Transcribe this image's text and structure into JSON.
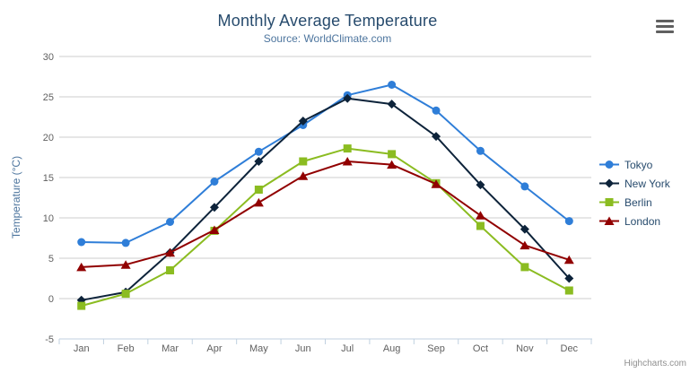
{
  "header": {
    "title": "Monthly Average Temperature",
    "subtitle": "Source: WorldClimate.com"
  },
  "credit": "Highcharts.com",
  "chart_data": {
    "type": "line",
    "title": "Monthly Average Temperature",
    "subtitle": "Source: WorldClimate.com",
    "xlabel": "",
    "ylabel": "Temperature (°C)",
    "categories": [
      "Jan",
      "Feb",
      "Mar",
      "Apr",
      "May",
      "Jun",
      "Jul",
      "Aug",
      "Sep",
      "Oct",
      "Nov",
      "Dec"
    ],
    "ylim": [
      -5,
      30
    ],
    "ytick_step": 5,
    "grid": true,
    "legend_position": "right-middle-vertical",
    "series": [
      {
        "name": "Tokyo",
        "color": "#2f7ed8",
        "marker": "circle",
        "values": [
          7.0,
          6.9,
          9.5,
          14.5,
          18.2,
          21.5,
          25.2,
          26.5,
          23.3,
          18.3,
          13.9,
          9.6
        ]
      },
      {
        "name": "New York",
        "color": "#0d233a",
        "marker": "diamond",
        "values": [
          -0.2,
          0.8,
          5.7,
          11.3,
          17.0,
          22.0,
          24.8,
          24.1,
          20.1,
          14.1,
          8.6,
          2.5
        ]
      },
      {
        "name": "Berlin",
        "color": "#8bbc21",
        "marker": "square",
        "values": [
          -0.9,
          0.6,
          3.5,
          8.4,
          13.5,
          17.0,
          18.6,
          17.9,
          14.3,
          9.0,
          3.9,
          1.0
        ]
      },
      {
        "name": "London",
        "color": "#910000",
        "marker": "triangle",
        "values": [
          3.9,
          4.2,
          5.7,
          8.5,
          11.9,
          15.2,
          17.0,
          16.6,
          14.2,
          10.3,
          6.6,
          4.8
        ]
      }
    ],
    "style": {
      "title_color": "#274b6d",
      "subtitle_color": "#4d759e",
      "axis_title_color": "#4d759e",
      "tick_label_color": "#606060",
      "grid_line_color": "#cccccc",
      "axis_line_color": "#c0d0e0",
      "legend_text_color": "#274b6d",
      "credit_color": "#909090",
      "background": "#ffffff"
    }
  }
}
